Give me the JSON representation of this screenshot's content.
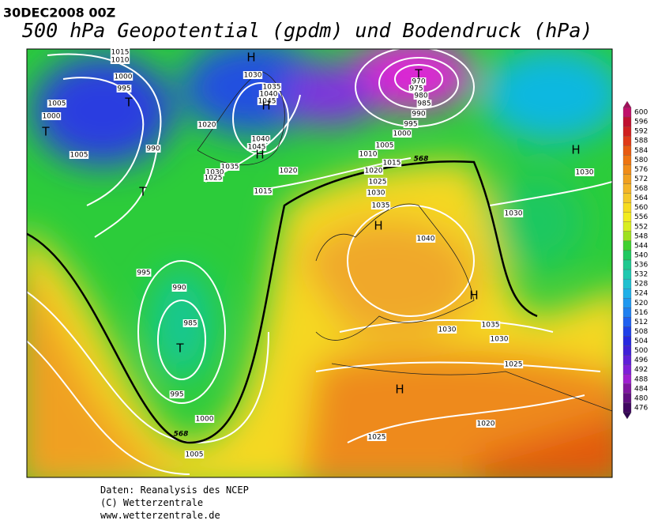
{
  "header": {
    "date": "30DEC2008 00Z",
    "title": "500 hPa Geopotential (gpdm) und Bodendruck (hPa)"
  },
  "isobar_labels": [
    1015,
    1010,
    1000,
    995,
    1005,
    1000,
    1005,
    990,
    1020,
    1030,
    1035,
    1040,
    1045,
    1040,
    1045,
    1035,
    1030,
    1025,
    1020,
    1015,
    970,
    975,
    980,
    985,
    990,
    995,
    1000,
    1005,
    1010,
    1015,
    1020,
    1025,
    1030,
    1035,
    1040,
    1030,
    1030,
    995,
    990,
    985,
    995,
    1000,
    1005,
    1030,
    1035,
    1030,
    1025,
    1020,
    1025
  ],
  "contour_labels": [
    568,
    568
  ],
  "pressure_centers": [
    "H",
    "H",
    "H",
    "H",
    "H",
    "H",
    "H",
    "T",
    "T",
    "T",
    "T",
    "T"
  ],
  "colorbar": {
    "labels": [
      600,
      596,
      592,
      588,
      584,
      580,
      576,
      572,
      568,
      564,
      560,
      556,
      552,
      548,
      544,
      540,
      536,
      532,
      528,
      524,
      520,
      516,
      512,
      508,
      504,
      500,
      496,
      492,
      488,
      484,
      480,
      476
    ]
  },
  "footer": [
    "Daten: Reanalysis des NCEP",
    "(C) Wetterzentrale",
    "www.wetterzentrale.de"
  ]
}
